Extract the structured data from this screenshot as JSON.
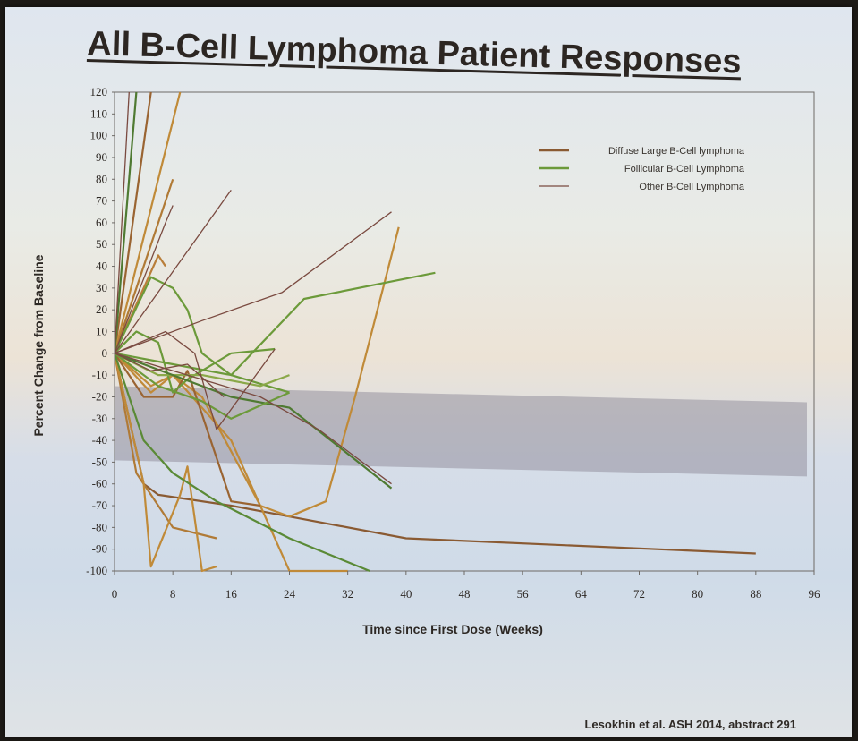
{
  "slide": {
    "title": "All B-Cell Lymphoma Patient Responses",
    "citation": "Lesokhin et al. ASH 2014, abstract 291"
  },
  "chart_data": {
    "type": "line",
    "title": "All B-Cell Lymphoma Patient Responses",
    "xlabel": "Time since First Dose (Weeks)",
    "ylabel": "Percent Change from Baseline",
    "xlim": [
      0,
      96
    ],
    "ylim": [
      -100,
      120
    ],
    "xticks": [
      0,
      8,
      16,
      24,
      32,
      40,
      48,
      56,
      64,
      72,
      80,
      88,
      96
    ],
    "yticks": [
      120,
      110,
      100,
      90,
      80,
      70,
      60,
      50,
      40,
      30,
      20,
      10,
      0,
      -10,
      -20,
      -30,
      -40,
      -50,
      -60,
      -70,
      -80,
      -90,
      -100
    ],
    "shaded_band": [
      -50,
      -20
    ],
    "legend": {
      "placement": "top-right",
      "entries": [
        {
          "label": "Diffuse Large B-Cell lymphoma",
          "color": "#8a5a32"
        },
        {
          "label": "Follicular B-Cell Lymphoma",
          "color": "#6c9a3a"
        },
        {
          "label": "Other B-Cell Lymphoma",
          "color": "#7a4a40"
        }
      ]
    },
    "series": [
      {
        "type": "Diffuse Large B-Cell lymphoma",
        "color": "#9a6432",
        "points": [
          [
            0,
            0
          ],
          [
            5,
            120
          ]
        ]
      },
      {
        "type": "Diffuse Large B-Cell lymphoma",
        "color": "#c08a38",
        "points": [
          [
            0,
            0
          ],
          [
            9,
            120
          ]
        ]
      },
      {
        "type": "Diffuse Large B-Cell lymphoma",
        "color": "#b07a36",
        "points": [
          [
            0,
            0
          ],
          [
            8,
            80
          ]
        ]
      },
      {
        "type": "Diffuse Large B-Cell lymphoma",
        "color": "#b97e3a",
        "points": [
          [
            0,
            0
          ],
          [
            6,
            45
          ],
          [
            7,
            40
          ]
        ]
      },
      {
        "type": "Diffuse Large B-Cell lymphoma",
        "color": "#8a5a32",
        "points": [
          [
            0,
            0
          ],
          [
            4,
            -60
          ],
          [
            6,
            -65
          ],
          [
            16,
            -70
          ],
          [
            24,
            -75
          ],
          [
            40,
            -85
          ],
          [
            88,
            -92
          ]
        ]
      },
      {
        "type": "Diffuse Large B-Cell lymphoma",
        "color": "#c08a38",
        "points": [
          [
            0,
            0
          ],
          [
            5,
            -15
          ],
          [
            8,
            -10
          ],
          [
            12,
            -20
          ],
          [
            16,
            -45
          ],
          [
            20,
            -70
          ],
          [
            24,
            -100
          ],
          [
            32,
            -100
          ]
        ]
      },
      {
        "type": "Diffuse Large B-Cell lymphoma",
        "color": "#c08a38",
        "points": [
          [
            0,
            0
          ],
          [
            5,
            -18
          ],
          [
            8,
            -10
          ],
          [
            16,
            -40
          ],
          [
            20,
            -70
          ],
          [
            24,
            -75
          ],
          [
            29,
            -68
          ],
          [
            33,
            -20
          ],
          [
            39,
            58
          ]
        ]
      },
      {
        "type": "Diffuse Large B-Cell lymphoma",
        "color": "#b07a36",
        "points": [
          [
            0,
            0
          ],
          [
            3,
            -55
          ],
          [
            6,
            -70
          ],
          [
            8,
            -80
          ],
          [
            14,
            -85
          ]
        ]
      },
      {
        "type": "Diffuse Large B-Cell lymphoma",
        "color": "#c08a38",
        "points": [
          [
            0,
            0
          ],
          [
            4,
            -60
          ],
          [
            5,
            -98
          ],
          [
            9,
            -65
          ],
          [
            10,
            -52
          ],
          [
            12,
            -100
          ],
          [
            14,
            -98
          ]
        ]
      },
      {
        "type": "Diffuse Large B-Cell lymphoma",
        "color": "#9a6432",
        "points": [
          [
            0,
            0
          ],
          [
            4,
            -20
          ],
          [
            8,
            -20
          ],
          [
            10,
            -8
          ],
          [
            16,
            -68
          ],
          [
            20,
            -70
          ]
        ]
      },
      {
        "type": "Follicular B-Cell Lymphoma",
        "color": "#4f7a32",
        "points": [
          [
            0,
            0
          ],
          [
            3,
            120
          ]
        ]
      },
      {
        "type": "Follicular B-Cell Lymphoma",
        "color": "#6c9a3a",
        "points": [
          [
            0,
            0
          ],
          [
            5,
            35
          ],
          [
            8,
            30
          ],
          [
            10,
            20
          ],
          [
            12,
            0
          ],
          [
            16,
            -10
          ],
          [
            24,
            -18
          ]
        ]
      },
      {
        "type": "Follicular B-Cell Lymphoma",
        "color": "#6c9a3a",
        "points": [
          [
            0,
            0
          ],
          [
            8,
            -5
          ],
          [
            16,
            -10
          ],
          [
            26,
            25
          ],
          [
            44,
            37
          ]
        ]
      },
      {
        "type": "Follicular B-Cell Lymphoma",
        "color": "#6c9a3a",
        "points": [
          [
            0,
            0
          ],
          [
            3,
            10
          ],
          [
            6,
            5
          ],
          [
            8,
            -18
          ],
          [
            10,
            -12
          ],
          [
            16,
            0
          ],
          [
            22,
            2
          ]
        ]
      },
      {
        "type": "Follicular B-Cell Lymphoma",
        "color": "#8aa848",
        "points": [
          [
            0,
            0
          ],
          [
            6,
            -10
          ],
          [
            12,
            -10
          ],
          [
            20,
            -15
          ],
          [
            24,
            -10
          ]
        ]
      },
      {
        "type": "Follicular B-Cell Lymphoma",
        "color": "#4f7a32",
        "points": [
          [
            0,
            0
          ],
          [
            8,
            -10
          ],
          [
            16,
            -20
          ],
          [
            24,
            -25
          ],
          [
            38,
            -62
          ]
        ]
      },
      {
        "type": "Follicular B-Cell Lymphoma",
        "color": "#5a8a36",
        "points": [
          [
            0,
            0
          ],
          [
            4,
            -40
          ],
          [
            8,
            -55
          ],
          [
            14,
            -68
          ],
          [
            24,
            -85
          ],
          [
            35,
            -100
          ]
        ]
      },
      {
        "type": "Follicular B-Cell Lymphoma",
        "color": "#6c9a3a",
        "points": [
          [
            0,
            0
          ],
          [
            6,
            -15
          ],
          [
            12,
            -22
          ],
          [
            16,
            -30
          ],
          [
            24,
            -18
          ]
        ]
      },
      {
        "type": "Other B-Cell Lymphoma",
        "color": "#7a4a40",
        "points": [
          [
            0,
            0
          ],
          [
            2,
            120
          ]
        ]
      },
      {
        "type": "Other B-Cell Lymphoma",
        "color": "#7a4a40",
        "points": [
          [
            0,
            0
          ],
          [
            7,
            60
          ],
          [
            8,
            68
          ]
        ]
      },
      {
        "type": "Other B-Cell Lymphoma",
        "color": "#7a4a40",
        "points": [
          [
            0,
            0
          ],
          [
            16,
            75
          ]
        ]
      },
      {
        "type": "Other B-Cell Lymphoma",
        "color": "#7a4a40",
        "points": [
          [
            0,
            0
          ],
          [
            12,
            15
          ],
          [
            23,
            28
          ],
          [
            38,
            65
          ]
        ]
      },
      {
        "type": "Other B-Cell Lymphoma",
        "color": "#7a4a40",
        "points": [
          [
            0,
            0
          ],
          [
            7,
            10
          ],
          [
            11,
            0
          ],
          [
            14,
            -35
          ],
          [
            22,
            2
          ]
        ]
      },
      {
        "type": "Other B-Cell Lymphoma",
        "color": "#7a4a40",
        "points": [
          [
            0,
            0
          ],
          [
            5,
            -8
          ],
          [
            10,
            -5
          ],
          [
            15,
            -20
          ]
        ]
      },
      {
        "type": "Other B-Cell Lymphoma",
        "color": "#7a4a40",
        "points": [
          [
            0,
            0
          ],
          [
            10,
            -10
          ],
          [
            20,
            -20
          ],
          [
            28,
            -35
          ],
          [
            38,
            -60
          ]
        ]
      }
    ]
  }
}
